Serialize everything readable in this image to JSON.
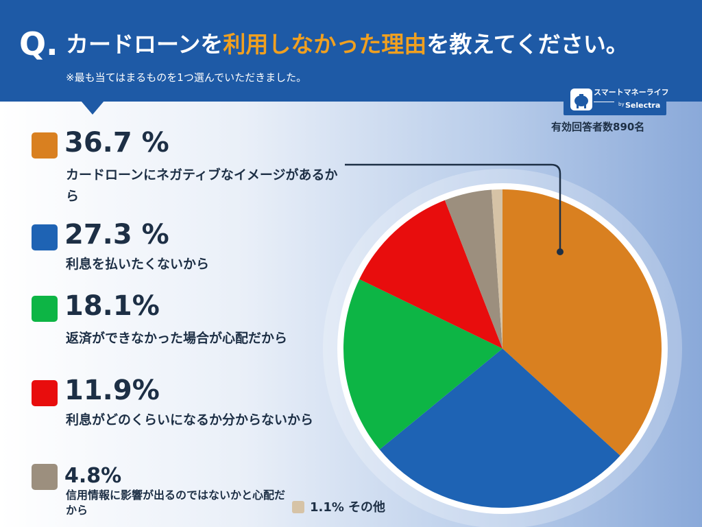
{
  "header": {
    "q_mark": "Q.",
    "question_before": "カードローンを",
    "question_highlight": "利用しなかった理由",
    "question_after": "を教えてください。",
    "note": "※最も当てはまるものを1つ選んでいただきました。"
  },
  "logo": {
    "name": "スマートマネーライフ",
    "by": "by",
    "sub": "Selectra"
  },
  "respondents": "有効回答者数890名",
  "colors": {
    "header": "#1e5aa6",
    "highlight": "#f0a020",
    "text": "#1d2f45"
  },
  "legend": [
    {
      "pct": "36.7 %",
      "label": "カードローンにネガティブなイメージがあるから",
      "color": "#d98020"
    },
    {
      "pct": "27.3 %",
      "label": "利息を払いたくないから",
      "color": "#1e63b4"
    },
    {
      "pct": "18.1%",
      "label": "返済ができなかった場合が心配だから",
      "color": "#0db545"
    },
    {
      "pct": "11.9%",
      "label": "利息がどのくらいになるか分からないから",
      "color": "#e80d0d"
    },
    {
      "pct": "4.8%",
      "label": "信用情報に影響が出るのではないかと心配だから",
      "color": "#9c8f7e"
    }
  ],
  "other": {
    "pct": "1.1%",
    "label": "その他",
    "color": "#d6c3a6"
  },
  "chart_data": {
    "type": "pie",
    "title": "カードローンを利用しなかった理由",
    "categories": [
      "カードローンにネガティブなイメージがあるから",
      "利息を払いたくないから",
      "返済ができなかった場合が心配だから",
      "利息がどのくらいになるか分からないから",
      "信用情報に影響が出るのではないかと心配だから",
      "その他"
    ],
    "values": [
      36.7,
      27.3,
      18.1,
      11.9,
      4.8,
      1.1
    ],
    "colors": [
      "#d98020",
      "#1e63b4",
      "#0db545",
      "#e80d0d",
      "#9c8f7e",
      "#d6c3a6"
    ],
    "start": "12 o'clock, clockwise"
  }
}
